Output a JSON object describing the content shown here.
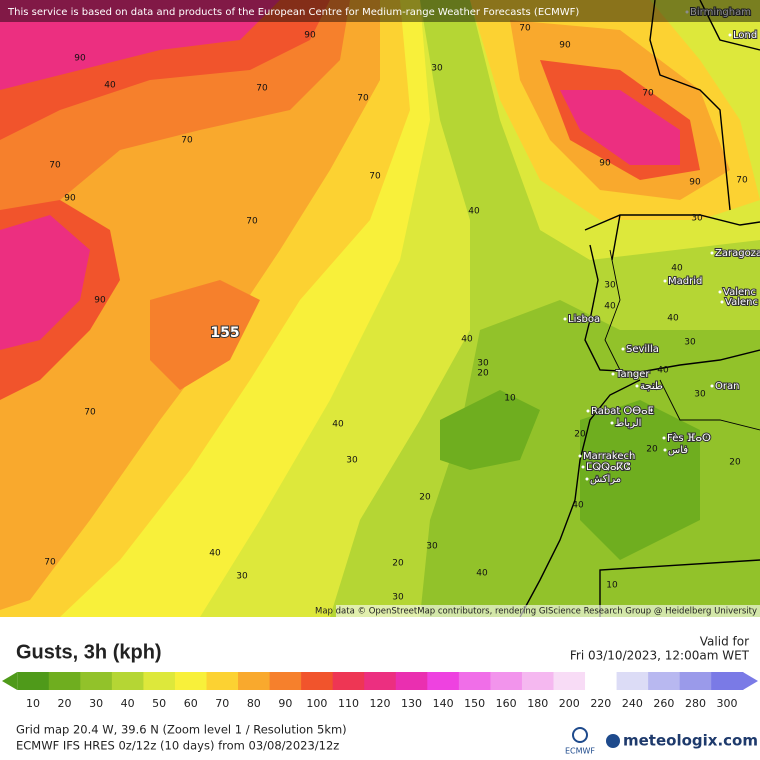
{
  "header": {
    "notice": "This service is based on data and products of the European Centre for Medium-range Weather Forecasts (ECMWF)"
  },
  "map": {
    "cities": [
      "Birmingham",
      "Lond",
      "Zaragoza",
      "Madrid",
      "Valenc",
      "Valenc",
      "Lisboa",
      "Sevilla",
      "Tanger",
      "طنجة",
      "Oran",
      "Rabat ⵔⴱⴰⵟ",
      "الرباط",
      "Fès ⴼⴰⵙ",
      "فاس",
      "Marrakech",
      "ⵎⵕⵕⴰⴽⵛ",
      "مراكش"
    ],
    "contour_labels": [
      90,
      90,
      40,
      70,
      70,
      30,
      70,
      90,
      70,
      90,
      90,
      70,
      70,
      70,
      90,
      70,
      70,
      40,
      30,
      90,
      155,
      40,
      30,
      20,
      70,
      40,
      10,
      20,
      30,
      20,
      40,
      30,
      70,
      20,
      30,
      40,
      30,
      40,
      10,
      40,
      30,
      40,
      40,
      30,
      40,
      20,
      30,
      20
    ],
    "attribution": "Map data © OpenStreetMap contributors, rendering GIScience Research Group @ Heidelberg University"
  },
  "legend": {
    "title": "Gusts, 3h (kph)",
    "valid_label": "Valid for",
    "valid_time": "Fri 03/10/2023, 12:00am WET",
    "scale": [
      {
        "value": 10,
        "color": "#4f9a1a"
      },
      {
        "value": 20,
        "color": "#6fae1f"
      },
      {
        "value": 30,
        "color": "#92c22a"
      },
      {
        "value": 40,
        "color": "#b5d634"
      },
      {
        "value": 50,
        "color": "#dde83b"
      },
      {
        "value": 60,
        "color": "#f8f03a"
      },
      {
        "value": 70,
        "color": "#fcd232"
      },
      {
        "value": 80,
        "color": "#f9a92d"
      },
      {
        "value": 90,
        "color": "#f6802c"
      },
      {
        "value": 100,
        "color": "#f1542c"
      },
      {
        "value": 110,
        "color": "#ee3654"
      },
      {
        "value": 120,
        "color": "#ec2f80"
      },
      {
        "value": 130,
        "color": "#ea2fb0"
      },
      {
        "value": 140,
        "color": "#ee42e0"
      },
      {
        "value": 150,
        "color": "#f06ee8"
      },
      {
        "value": 160,
        "color": "#f294ec"
      },
      {
        "value": 180,
        "color": "#f5b8f0"
      },
      {
        "value": 200,
        "color": "#f8dcf6"
      },
      {
        "value": 220,
        "color": "#ffffff"
      },
      {
        "value": 240,
        "color": "#dcdcf6"
      },
      {
        "value": 260,
        "color": "#b8b8f0"
      },
      {
        "value": 280,
        "color": "#9a9aea"
      },
      {
        "value": 300,
        "color": "#7a7ae6"
      }
    ]
  },
  "footer": {
    "grid": "Grid map 20.4 W, 39.6 N (Zoom level 1 / Resolution 5km)",
    "model": "ECMWF IFS HRES 0z/12z (10 days) from  03/08/2023/12z",
    "ecmwf": "ECMWF",
    "brand": "meteologix.com"
  }
}
